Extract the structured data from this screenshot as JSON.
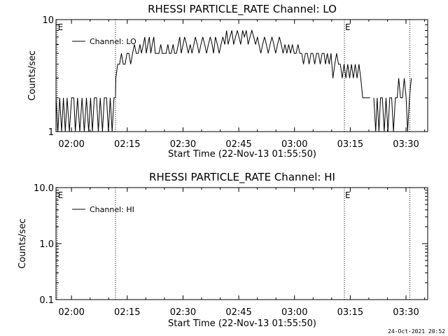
{
  "footer_timestamp": "24-Oct-2021 20:52",
  "colors": {
    "line": "#000000",
    "background": "#ffffff"
  },
  "chart_data": [
    {
      "type": "line",
      "title": "RHESSI PARTICLE_RATE Channel: LO",
      "xlabel": "Start Time (22-Nov-13 01:55:50)",
      "ylabel": "Counts/sec",
      "yscale": "log",
      "ylim": [
        1,
        10
      ],
      "y_tick_labels": [
        "1",
        "10"
      ],
      "xlim_minutes": [
        0,
        100
      ],
      "x_ticks": [
        {
          "label": "02:00",
          "t": 4.17
        },
        {
          "label": "02:15",
          "t": 19.17
        },
        {
          "label": "02:30",
          "t": 34.17
        },
        {
          "label": "02:45",
          "t": 49.17
        },
        {
          "label": "03:00",
          "t": 64.17
        },
        {
          "label": "03:15",
          "t": 79.17
        },
        {
          "label": "03:30",
          "t": 94.17
        }
      ],
      "event_markers": [
        {
          "t": 0.3,
          "label": "E"
        },
        {
          "t": 16.0,
          "label": ""
        },
        {
          "t": 77.6,
          "label": "E"
        },
        {
          "t": 95.2,
          "label": ""
        }
      ],
      "legend": {
        "position": "top-left",
        "entries": [
          "Channel: LO"
        ]
      },
      "series": [
        {
          "name": "Channel: LO",
          "segments": [
            [
              [
                0,
                2
              ],
              [
                0.5,
                1
              ],
              [
                1,
                2
              ],
              [
                1.5,
                1
              ],
              [
                2,
                2
              ],
              [
                2.5,
                1
              ],
              [
                3,
                2
              ],
              [
                3.6,
                1
              ],
              [
                4.2,
                2
              ],
              [
                4.8,
                2
              ],
              [
                5.2,
                1
              ],
              [
                5.8,
                2
              ],
              [
                6.4,
                1
              ],
              [
                7,
                2
              ],
              [
                7.6,
                1
              ],
              [
                8.2,
                2
              ],
              [
                8.8,
                1
              ],
              [
                9.3,
                2
              ],
              [
                9.8,
                1
              ],
              [
                10.3,
                2
              ],
              [
                10.9,
                2
              ],
              [
                11.4,
                1
              ],
              [
                11.9,
                2
              ],
              [
                12.5,
                1
              ],
              [
                13,
                2
              ],
              [
                13.6,
                2
              ],
              [
                14.1,
                1
              ],
              [
                14.6,
                2
              ],
              [
                15.1,
                1
              ],
              [
                15.6,
                2
              ],
              [
                16,
                2
              ],
              [
                16.1,
                3
              ],
              [
                16.6,
                4
              ],
              [
                17.1,
                4
              ],
              [
                17.6,
                5
              ],
              [
                18.1,
                4
              ],
              [
                18.6,
                4
              ],
              [
                19.1,
                5
              ],
              [
                19.6,
                5
              ],
              [
                20.1,
                4
              ],
              [
                20.6,
                5
              ],
              [
                21.1,
                6
              ],
              [
                21.6,
                5
              ],
              [
                22.1,
                5
              ],
              [
                22.6,
                6
              ],
              [
                23,
                5
              ],
              [
                23.5,
                6
              ],
              [
                23.9,
                7
              ],
              [
                24.3,
                5
              ],
              [
                24.7,
                6
              ],
              [
                25.1,
                7
              ],
              [
                25.5,
                5
              ],
              [
                25.9,
                6
              ],
              [
                26.3,
                7
              ],
              [
                26.7,
                5
              ],
              [
                27.2,
                5
              ],
              [
                27.7,
                5
              ],
              [
                28.2,
                6
              ],
              [
                28.6,
                5
              ],
              [
                29.1,
                5
              ],
              [
                29.6,
                5
              ],
              [
                30.1,
                6
              ],
              [
                30.5,
                5
              ],
              [
                31,
                5
              ],
              [
                31.5,
                6
              ],
              [
                31.9,
                5
              ],
              [
                32.4,
                5
              ],
              [
                32.9,
                6
              ],
              [
                33.3,
                7
              ],
              [
                33.7,
                5
              ],
              [
                34.2,
                6
              ],
              [
                34.6,
                7
              ],
              [
                35.1,
                6
              ],
              [
                35.6,
                5
              ],
              [
                36.1,
                6
              ],
              [
                36.6,
                5
              ],
              [
                37.1,
                6
              ],
              [
                37.5,
                7
              ],
              [
                38,
                6
              ],
              [
                38.5,
                5
              ],
              [
                39,
                6
              ],
              [
                39.5,
                7
              ],
              [
                40,
                6
              ],
              [
                40.5,
                5
              ],
              [
                41,
                6
              ],
              [
                41.5,
                7
              ],
              [
                42,
                6
              ],
              [
                42.4,
                5
              ],
              [
                42.9,
                7
              ],
              [
                43.4,
                6
              ],
              [
                43.9,
                5
              ],
              [
                44.4,
                6
              ],
              [
                44.9,
                7
              ],
              [
                45.4,
                6
              ],
              [
                45.9,
                8
              ],
              [
                46.3,
                6
              ],
              [
                46.8,
                7
              ],
              [
                47.3,
                8
              ],
              [
                47.8,
                6
              ],
              [
                48.3,
                7
              ],
              [
                48.8,
                8
              ],
              [
                49.2,
                7
              ],
              [
                49.7,
                6
              ],
              [
                50.2,
                8
              ],
              [
                50.7,
                7
              ],
              [
                51.2,
                8
              ],
              [
                51.7,
                6
              ],
              [
                52.2,
                7
              ],
              [
                52.7,
                8
              ],
              [
                53.2,
                7
              ],
              [
                53.7,
                6
              ],
              [
                54.2,
                7
              ],
              [
                54.6,
                6
              ],
              [
                55.1,
                5
              ],
              [
                55.6,
                6
              ],
              [
                56.1,
                7
              ],
              [
                56.6,
                6
              ],
              [
                57.1,
                5
              ],
              [
                57.6,
                6
              ],
              [
                58.1,
                7
              ],
              [
                58.6,
                6
              ],
              [
                59.1,
                5
              ],
              [
                59.6,
                6
              ],
              [
                60.1,
                7
              ],
              [
                60.6,
                6
              ],
              [
                61.1,
                5
              ],
              [
                61.6,
                6
              ],
              [
                62.1,
                5
              ],
              [
                62.6,
                6
              ],
              [
                63.1,
                5
              ],
              [
                63.6,
                6
              ],
              [
                64.1,
                5
              ],
              [
                64.6,
                5
              ],
              [
                65.1,
                6
              ],
              [
                65.6,
                5
              ],
              [
                66.1,
                5
              ],
              [
                66.6,
                4
              ],
              [
                67.1,
                5
              ],
              [
                67.6,
                5
              ],
              [
                68.1,
                4
              ],
              [
                68.6,
                5
              ],
              [
                69.1,
                5
              ],
              [
                69.6,
                4
              ],
              [
                70.1,
                5
              ],
              [
                70.6,
                5
              ],
              [
                71.1,
                4
              ],
              [
                71.6,
                5
              ],
              [
                72.1,
                5
              ],
              [
                72.5,
                4
              ],
              [
                73,
                5
              ],
              [
                73.5,
                4
              ],
              [
                74,
                5
              ],
              [
                74.5,
                3
              ],
              [
                75,
                4
              ],
              [
                75.5,
                5
              ],
              [
                76,
                4
              ],
              [
                76.5,
                4
              ],
              [
                77,
                3
              ],
              [
                77.5,
                4
              ],
              [
                78,
                3
              ],
              [
                78.5,
                4
              ],
              [
                79,
                3
              ],
              [
                79.5,
                4
              ],
              [
                80,
                3
              ],
              [
                80.5,
                4
              ],
              [
                81,
                3
              ],
              [
                81.5,
                4
              ],
              [
                82,
                3
              ],
              [
                82.5,
                2
              ],
              [
                83,
                2
              ],
              [
                83.5,
                2
              ],
              [
                84,
                2
              ],
              [
                84.5,
                2
              ]
            ],
            [
              [
                85.5,
                2
              ],
              [
                86,
                1
              ],
              [
                86.4,
                2
              ],
              [
                86.9,
                1
              ],
              [
                87.3,
                2
              ],
              [
                87.8,
                2
              ],
              [
                88.3,
                1
              ],
              [
                88.8,
                2
              ],
              [
                89.3,
                1
              ],
              [
                89.8,
                2
              ],
              [
                90.3,
                2
              ],
              [
                90.8,
                1
              ],
              [
                91.3,
                2
              ],
              [
                91.8,
                2
              ],
              [
                92.2,
                3
              ],
              [
                92.7,
                2
              ],
              [
                93.2,
                2
              ],
              [
                93.7,
                3
              ],
              [
                94.2,
                2
              ],
              [
                94.6,
                1
              ],
              [
                95.1,
                2
              ],
              [
                95.6,
                3
              ]
            ]
          ]
        }
      ]
    },
    {
      "type": "line",
      "title": "RHESSI PARTICLE_RATE Channel: HI",
      "xlabel": "Start Time (22-Nov-13 01:55:50)",
      "ylabel": "Counts/sec",
      "yscale": "log",
      "ylim": [
        0.1,
        10
      ],
      "y_tick_labels": [
        "0.1",
        "1.0",
        "10.0"
      ],
      "xlim_minutes": [
        0,
        100
      ],
      "x_ticks": [
        {
          "label": "02:00",
          "t": 4.17
        },
        {
          "label": "02:15",
          "t": 19.17
        },
        {
          "label": "02:30",
          "t": 34.17
        },
        {
          "label": "02:45",
          "t": 49.17
        },
        {
          "label": "03:00",
          "t": 64.17
        },
        {
          "label": "03:15",
          "t": 79.17
        },
        {
          "label": "03:30",
          "t": 94.17
        }
      ],
      "event_markers": [
        {
          "t": 0.3,
          "label": "E"
        },
        {
          "t": 16.0,
          "label": ""
        },
        {
          "t": 77.6,
          "label": "E"
        },
        {
          "t": 95.2,
          "label": ""
        }
      ],
      "legend": {
        "position": "top-left",
        "entries": [
          "Channel: HI"
        ]
      },
      "series": [
        {
          "name": "Channel: HI",
          "segments": []
        }
      ]
    }
  ]
}
